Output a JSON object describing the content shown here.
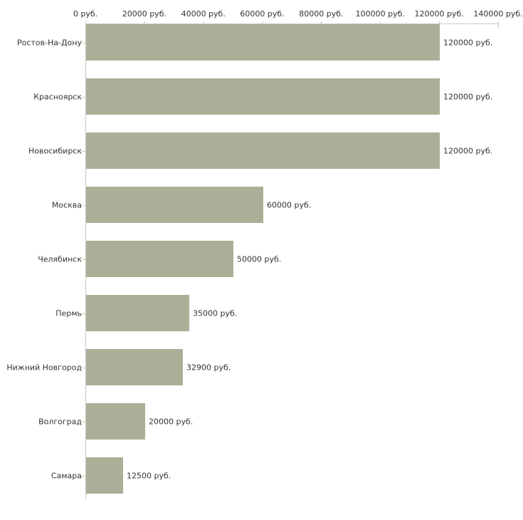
{
  "chart_data": {
    "type": "bar",
    "orientation": "horizontal",
    "title": "",
    "xlabel": "",
    "ylabel": "",
    "unit": "руб.",
    "categories": [
      "Ростов-На-Дону",
      "Красноярск",
      "Новосибирск",
      "Москва",
      "Челябинск",
      "Пермь",
      "Нижний Новгород",
      "Волгоград",
      "Самара"
    ],
    "values": [
      120000,
      120000,
      120000,
      60000,
      50000,
      35000,
      32900,
      20000,
      12500
    ],
    "value_labels": [
      "120000 руб.",
      "120000 руб.",
      "120000 руб.",
      "60000 руб.",
      "50000 руб.",
      "35000 руб.",
      "32900 руб.",
      "20000 руб.",
      "12500 руб."
    ],
    "x_ticks": [
      0,
      20000,
      40000,
      60000,
      80000,
      100000,
      120000,
      140000
    ],
    "x_tick_labels": [
      "0 руб.",
      "20000 руб.",
      "40000 руб.",
      "60000 руб.",
      "80000 руб.",
      "100000 руб.",
      "120000 руб.",
      "140000 руб."
    ],
    "xlim": [
      0,
      140000
    ],
    "grid": false,
    "legend": false,
    "axis_position": "top",
    "colors": {
      "bar": "#a9b097",
      "axis_line": "#c6c6c6",
      "tick_mark": "#c9cc9e",
      "text": "#333333",
      "background": "#ffffff"
    }
  }
}
